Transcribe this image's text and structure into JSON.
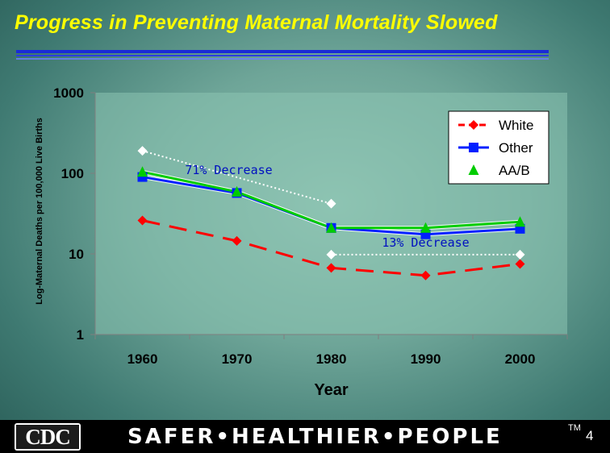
{
  "slide": {
    "title": "Progress in Preventing Maternal Mortality Slowed",
    "footer": {
      "logo_text": "CDC",
      "tagline": "SAFER•HEALTHIER•PEOPLE",
      "trademark": "TM",
      "page_number": "4"
    }
  },
  "colors": {
    "title": "#ffff00",
    "white_series": "#ff0000",
    "other_series": "#0020ff",
    "aab_series": "#00cc00",
    "plot_bg": "#8dc4b3"
  },
  "chart_data": {
    "type": "line",
    "title": "",
    "xlabel": "Year",
    "ylabel": "Log-Maternal Deaths per 100,000 Live Births",
    "y_scale": "log",
    "ylim": [
      1,
      1000
    ],
    "y_ticks": [
      "1",
      "10",
      "100",
      "1000"
    ],
    "grid": false,
    "legend_position": "top-right",
    "categories": [
      "1960",
      "1970",
      "1980",
      "1990",
      "2000"
    ],
    "series": [
      {
        "name": "White",
        "values": [
          26,
          14.5,
          6.7,
          5.4,
          7.5
        ],
        "marker": "diamond",
        "line": "dashed",
        "color": "#ff0000"
      },
      {
        "name": "Other",
        "values": [
          90,
          57,
          21,
          17.5,
          20.5
        ],
        "marker": "square",
        "line": "solid",
        "color": "#0020ff"
      },
      {
        "name": "AA/B",
        "values": [
          104,
          59,
          21,
          21,
          25
        ],
        "marker": "triangle",
        "line": "solid",
        "color": "#00cc00"
      }
    ],
    "annotations": [
      {
        "text": "71% Decrease",
        "from": [
          "1960",
          190
        ],
        "to": [
          "1980",
          42
        ]
      },
      {
        "text": "13% Decrease",
        "from": [
          "1980",
          9.8
        ],
        "to": [
          "2000",
          9.8
        ]
      }
    ]
  }
}
